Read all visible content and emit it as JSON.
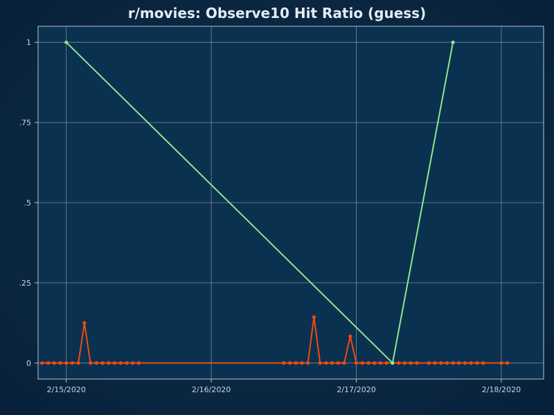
{
  "chart_data": {
    "type": "line",
    "title": "r/movies: Observe10 Hit Ratio (guess)",
    "xlabel": "",
    "ylabel": "",
    "x_ticks": [
      "2/15/2020",
      "2/16/2020",
      "2/17/2020",
      "2/18/2020"
    ],
    "y_ticks": [
      "0",
      ".25",
      ".5",
      ".75",
      "1"
    ],
    "xlim": [
      "2020-02-14T19:20",
      "2020-02-18T07:00"
    ],
    "ylim": [
      -0.05,
      1.05
    ],
    "grid": true,
    "legend": "none",
    "series": [
      {
        "color": "#f14b11",
        "points": [
          [
            "2020-02-14T20:00",
            0
          ],
          [
            "2020-02-14T21:00",
            0
          ],
          [
            "2020-02-14T22:00",
            0
          ],
          [
            "2020-02-14T23:00",
            0
          ],
          [
            "2020-02-15T00:00",
            0
          ],
          [
            "2020-02-15T01:00",
            0
          ],
          [
            "2020-02-15T02:00",
            0
          ],
          [
            "2020-02-15T03:00",
            0.125
          ],
          [
            "2020-02-15T04:00",
            0
          ],
          [
            "2020-02-15T05:00",
            0
          ],
          [
            "2020-02-15T06:00",
            0
          ],
          [
            "2020-02-15T07:00",
            0
          ],
          [
            "2020-02-15T08:00",
            0
          ],
          [
            "2020-02-15T09:00",
            0
          ],
          [
            "2020-02-15T10:00",
            0
          ],
          [
            "2020-02-15T11:00",
            0
          ],
          [
            "2020-02-15T12:00",
            0
          ],
          [
            "2020-02-16T12:00",
            0
          ],
          [
            "2020-02-16T13:00",
            0
          ],
          [
            "2020-02-16T14:00",
            0
          ],
          [
            "2020-02-16T15:00",
            0
          ],
          [
            "2020-02-16T16:00",
            0
          ],
          [
            "2020-02-16T17:00",
            0.143
          ],
          [
            "2020-02-16T18:00",
            0
          ],
          [
            "2020-02-16T19:00",
            0
          ],
          [
            "2020-02-16T20:00",
            0
          ],
          [
            "2020-02-16T21:00",
            0
          ],
          [
            "2020-02-16T22:00",
            0
          ],
          [
            "2020-02-16T23:00",
            0.083
          ],
          [
            "2020-02-17T00:00",
            0
          ],
          [
            "2020-02-17T01:00",
            0
          ],
          [
            "2020-02-17T02:00",
            0
          ],
          [
            "2020-02-17T03:00",
            0
          ],
          [
            "2020-02-17T04:00",
            0
          ],
          [
            "2020-02-17T05:00",
            0
          ],
          [
            "2020-02-17T06:00",
            0
          ],
          [
            "2020-02-17T07:00",
            0
          ],
          [
            "2020-02-17T08:00",
            0
          ],
          [
            "2020-02-17T09:00",
            0
          ],
          [
            "2020-02-17T10:00",
            0
          ],
          [
            "2020-02-17T12:00",
            0
          ],
          [
            "2020-02-17T13:00",
            0
          ],
          [
            "2020-02-17T14:00",
            0
          ],
          [
            "2020-02-17T15:00",
            0
          ],
          [
            "2020-02-17T16:00",
            0
          ],
          [
            "2020-02-17T17:00",
            0
          ],
          [
            "2020-02-17T18:00",
            0
          ],
          [
            "2020-02-17T19:00",
            0
          ],
          [
            "2020-02-17T20:00",
            0
          ],
          [
            "2020-02-17T21:00",
            0
          ],
          [
            "2020-02-18T00:00",
            0
          ],
          [
            "2020-02-18T01:00",
            0
          ]
        ]
      },
      {
        "color": "#8ce98c",
        "points": [
          [
            "2020-02-15T00:00",
            1
          ],
          [
            "2020-02-17T06:00",
            0
          ],
          [
            "2020-02-17T16:00",
            1
          ]
        ]
      }
    ]
  }
}
